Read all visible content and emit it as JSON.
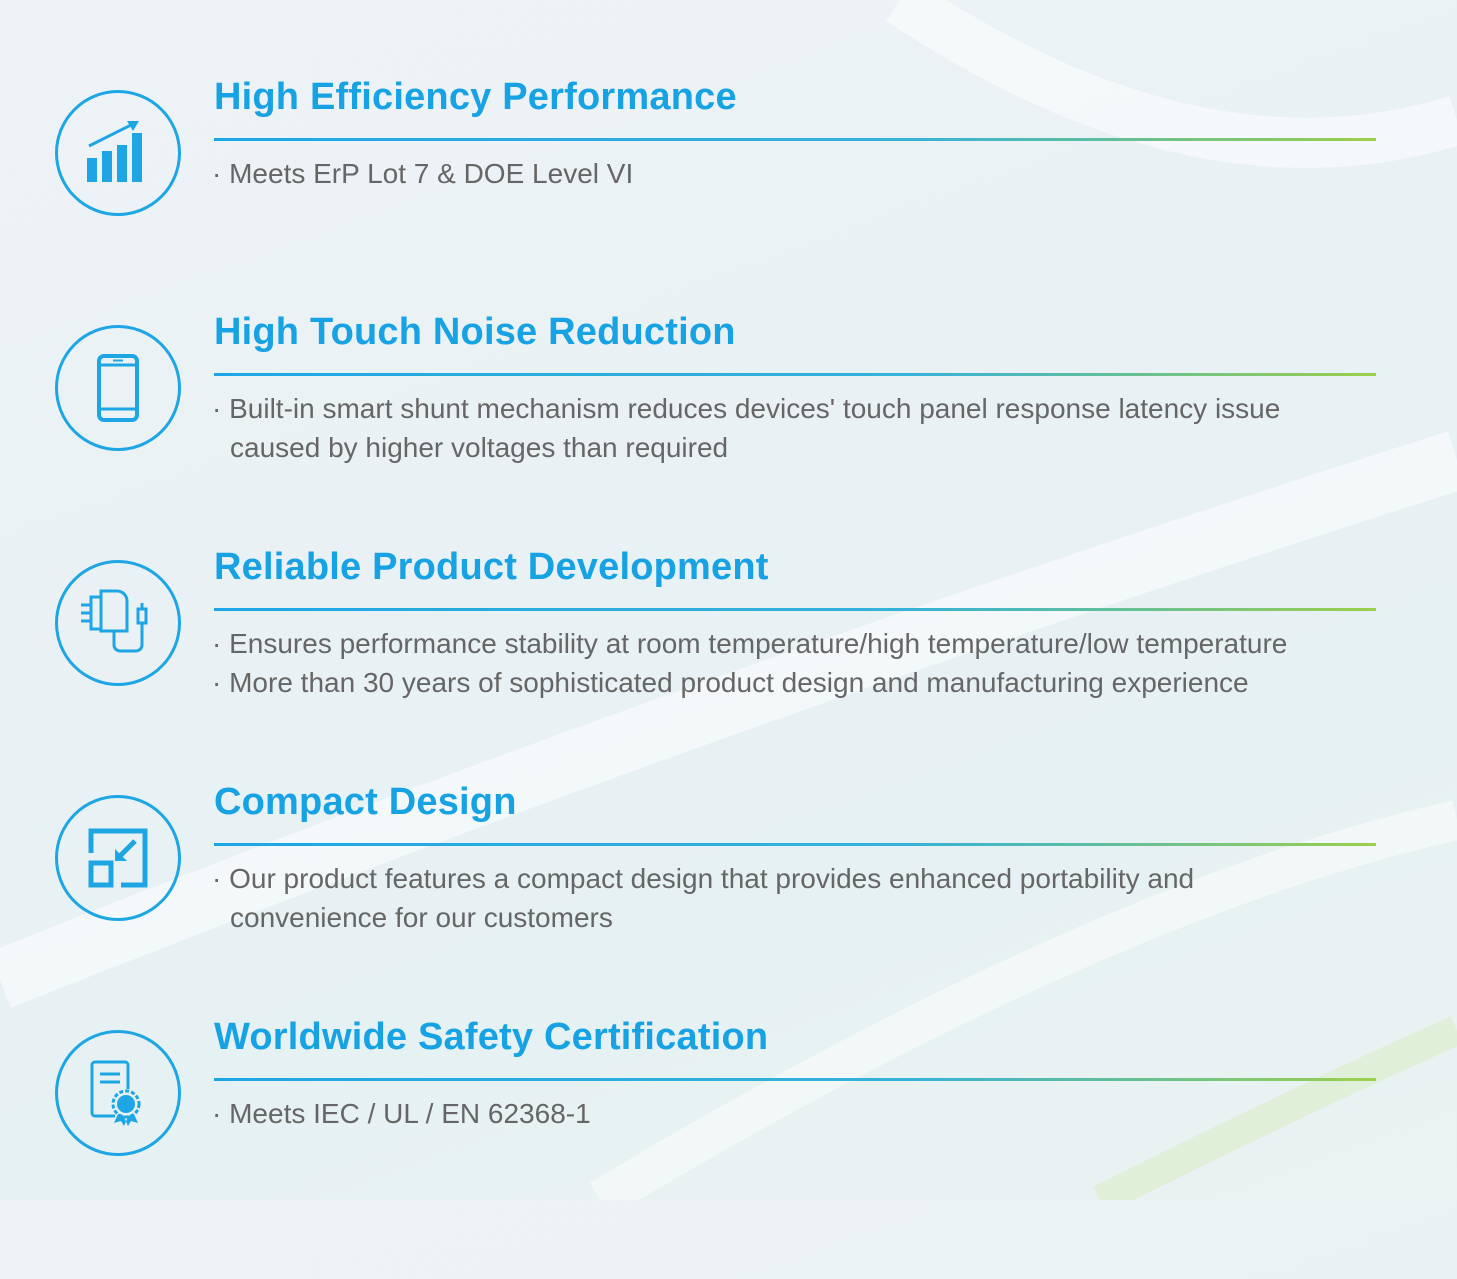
{
  "accent_color": "#1ea6e4",
  "rule_end_color": "#9ccf4a",
  "features": [
    {
      "icon": "bar-chart-growth-icon",
      "title": "High Efficiency Performance",
      "bullets": [
        [
          "· Meets ErP Lot 7 & DOE Level VI"
        ]
      ]
    },
    {
      "icon": "smartphone-icon",
      "title": "High Touch Noise Reduction",
      "bullets": [
        [
          "· Built-in smart shunt mechanism reduces devices' touch panel response latency issue",
          "caused by higher voltages than required"
        ]
      ]
    },
    {
      "icon": "power-adapter-icon",
      "title": "Reliable Product Development",
      "bullets": [
        [
          "· Ensures performance stability at room temperature/high temperature/low temperature"
        ],
        [
          "· More than 30 years of sophisticated product  design and manufacturing experience"
        ]
      ]
    },
    {
      "icon": "compact-resize-icon",
      "title": "Compact Design",
      "bullets": [
        [
          "· Our product features a compact design that provides enhanced portability and",
          "convenience for our customers"
        ]
      ]
    },
    {
      "icon": "certificate-icon",
      "title": "Worldwide Safety Certification",
      "bullets": [
        [
          "· Meets IEC / UL / EN 62368-1"
        ]
      ]
    }
  ]
}
